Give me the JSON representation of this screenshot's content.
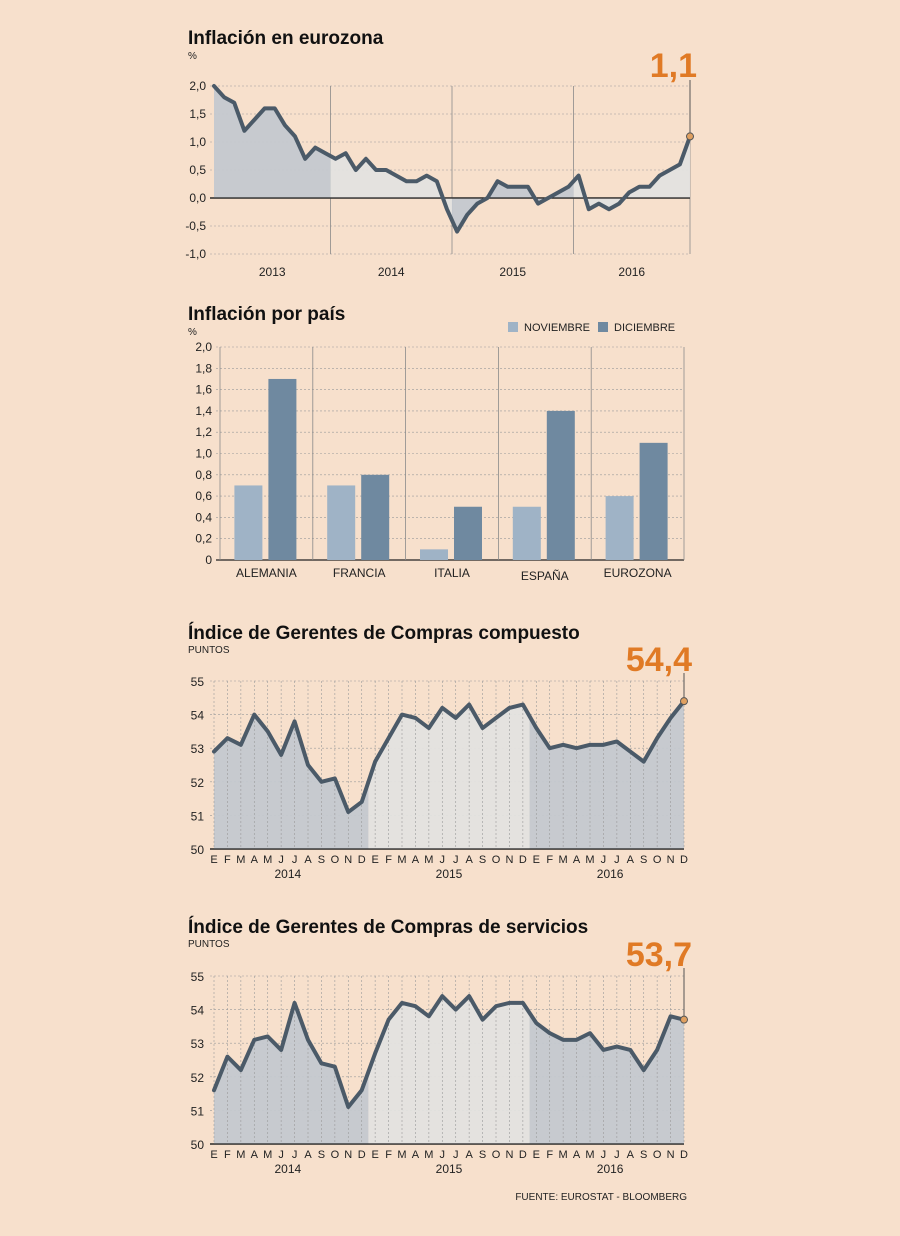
{
  "colors": {
    "background": "#f7e0cc",
    "line": "#4b5a68",
    "fill_dark": "#c4c8cf",
    "fill_light": "#e3e1df",
    "highlight": "#e07a25",
    "bar_light": "#9fb3c6",
    "bar_dark": "#6f89a0",
    "grid": "#9a9a9a"
  },
  "source": "FUENTE: EUROSTAT - BLOOMBERG",
  "chart_data": [
    {
      "type": "area",
      "title": "Inflación en eurozona",
      "unit": "%",
      "ylim": [
        -1.0,
        2.0
      ],
      "yticks": [
        "2,0",
        "1,5",
        "1,0",
        "0,5",
        "0,0",
        "-0,5",
        "-1,0"
      ],
      "ytick_values": [
        2.0,
        1.5,
        1.0,
        0.5,
        0.0,
        -0.5,
        -1.0
      ],
      "year_labels": [
        "2013",
        "2014",
        "2015",
        "2016"
      ],
      "values": [
        2.0,
        1.8,
        1.7,
        1.2,
        1.4,
        1.6,
        1.6,
        1.3,
        1.1,
        0.7,
        0.9,
        0.8,
        0.7,
        0.8,
        0.5,
        0.7,
        0.5,
        0.5,
        0.4,
        0.3,
        0.3,
        0.4,
        0.3,
        -0.2,
        -0.6,
        -0.3,
        -0.1,
        0.0,
        0.3,
        0.2,
        0.2,
        0.2,
        -0.1,
        0.0,
        0.1,
        0.2,
        0.4,
        -0.2,
        -0.1,
        -0.2,
        -0.1,
        0.1,
        0.2,
        0.2,
        0.4,
        0.5,
        0.6,
        1.1
      ],
      "highlight_value": "1,1"
    },
    {
      "type": "bar",
      "title": "Inflación por país",
      "unit": "%",
      "ylim": [
        0,
        2.0
      ],
      "yticks": [
        "2,0",
        "1,8",
        "1,6",
        "1,4",
        "1,2",
        "1,0",
        "0,8",
        "0,6",
        "0,4",
        "0,2",
        "0"
      ],
      "ytick_values": [
        2.0,
        1.8,
        1.6,
        1.4,
        1.2,
        1.0,
        0.8,
        0.6,
        0.4,
        0.2,
        0.0
      ],
      "categories": [
        "ALEMANIA",
        "FRANCIA",
        "ITALIA",
        "ESPAÑA",
        "EUROZONA"
      ],
      "series": [
        {
          "name": "NOVIEMBRE",
          "values": [
            0.7,
            0.7,
            0.1,
            0.5,
            0.6
          ]
        },
        {
          "name": "DICIEMBRE",
          "values": [
            1.7,
            0.8,
            0.5,
            1.4,
            1.1
          ]
        }
      ]
    },
    {
      "type": "area",
      "title": "Índice de Gerentes de Compras compuesto",
      "unit": "PUNTOS",
      "ylim": [
        50,
        55
      ],
      "yticks": [
        "55",
        "54",
        "53",
        "52",
        "51",
        "50"
      ],
      "ytick_values": [
        55,
        54,
        53,
        52,
        51,
        50
      ],
      "month_labels": [
        "E",
        "F",
        "M",
        "A",
        "M",
        "J",
        "J",
        "A",
        "S",
        "O",
        "N",
        "D"
      ],
      "year_labels": [
        "2014",
        "2015",
        "2016"
      ],
      "values": [
        52.9,
        53.3,
        53.1,
        54.0,
        53.5,
        52.8,
        53.8,
        52.5,
        52.0,
        52.1,
        51.1,
        51.4,
        52.6,
        53.3,
        54.0,
        53.9,
        53.6,
        54.2,
        53.9,
        54.3,
        53.6,
        53.9,
        54.2,
        54.3,
        53.6,
        53.0,
        53.1,
        53.0,
        53.1,
        53.1,
        53.2,
        52.9,
        52.6,
        53.3,
        53.9,
        54.4
      ],
      "highlight_value": "54,4"
    },
    {
      "type": "area",
      "title": "Índice de Gerentes de Compras de servicios",
      "unit": "PUNTOS",
      "ylim": [
        50,
        55
      ],
      "yticks": [
        "55",
        "54",
        "53",
        "52",
        "51",
        "50"
      ],
      "ytick_values": [
        55,
        54,
        53,
        52,
        51,
        50
      ],
      "month_labels": [
        "E",
        "F",
        "M",
        "A",
        "M",
        "J",
        "J",
        "A",
        "S",
        "O",
        "N",
        "D"
      ],
      "year_labels": [
        "2014",
        "2015",
        "2016"
      ],
      "values": [
        51.6,
        52.6,
        52.2,
        53.1,
        53.2,
        52.8,
        54.2,
        53.1,
        52.4,
        52.3,
        51.1,
        51.6,
        52.7,
        53.7,
        54.2,
        54.1,
        53.8,
        54.4,
        54.0,
        54.4,
        53.7,
        54.1,
        54.2,
        54.2,
        53.6,
        53.3,
        53.1,
        53.1,
        53.3,
        52.8,
        52.9,
        52.8,
        52.2,
        52.8,
        53.8,
        53.7
      ],
      "highlight_value": "53,7"
    }
  ]
}
